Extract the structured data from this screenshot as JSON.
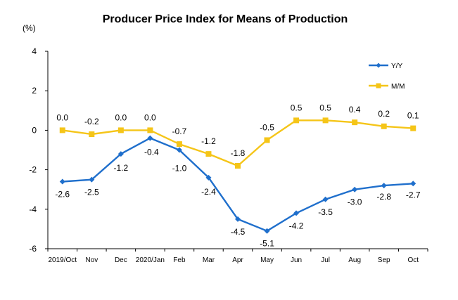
{
  "chart_data": {
    "type": "line",
    "title": "Producer Price Index for Means of Production",
    "unit_label": "(%)",
    "xlabel": "",
    "ylabel": "",
    "ylim": [
      -6,
      4
    ],
    "yticks": [
      4,
      2,
      0,
      -2,
      -4,
      -6
    ],
    "grid": false,
    "legend_position": "top-right",
    "categories": [
      "2019/Oct",
      "Nov",
      "Dec",
      "2020/Jan",
      "Feb",
      "Mar",
      "Apr",
      "May",
      "Jun",
      "Jul",
      "Aug",
      "Sep",
      "Oct"
    ],
    "series": [
      {
        "name": "Y/Y",
        "color": "#1F6FCC",
        "marker": "diamond",
        "values": [
          -2.6,
          -2.5,
          -1.2,
          -0.4,
          -1.0,
          -2.4,
          -4.5,
          -5.1,
          -4.2,
          -3.5,
          -3.0,
          -2.8,
          -2.7
        ],
        "labels": [
          "-2.6",
          "-2.5",
          "-1.2",
          "-0.4",
          "-1.0",
          "-2.4",
          "-4.5",
          "-5.1",
          "-4.2",
          "-3.5",
          "-3.0",
          "-2.8",
          "-2.7"
        ]
      },
      {
        "name": "M/M",
        "color": "#F5C518",
        "marker": "square",
        "values": [
          0.0,
          -0.2,
          0.0,
          0.0,
          -0.7,
          -1.2,
          -1.8,
          -0.5,
          0.5,
          0.5,
          0.4,
          0.2,
          0.1
        ],
        "labels": [
          "0.0",
          "-0.2",
          "0.0",
          "0.0",
          "-0.7",
          "-1.2",
          "-1.8",
          "-0.5",
          "0.5",
          "0.5",
          "0.4",
          "0.2",
          "0.1"
        ]
      }
    ]
  }
}
